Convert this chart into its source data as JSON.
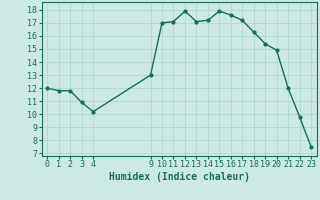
{
  "x": [
    0,
    1,
    2,
    3,
    4,
    9,
    10,
    11,
    12,
    13,
    14,
    15,
    16,
    17,
    18,
    19,
    20,
    21,
    22,
    23
  ],
  "y": [
    12,
    11.8,
    11.8,
    10.9,
    10.2,
    13,
    17,
    17.1,
    17.9,
    17.1,
    17.2,
    17.9,
    17.6,
    17.2,
    16.3,
    15.4,
    14.9,
    12,
    9.8,
    7.5
  ],
  "line_color": "#1a6b5a",
  "bg_color": "#cce9e4",
  "grid_color": "#aad4ce",
  "xlabel": "Humidex (Indice chaleur)",
  "xlabel_fontsize": 7,
  "xticks": [
    0,
    1,
    2,
    3,
    4,
    9,
    10,
    11,
    12,
    13,
    14,
    15,
    16,
    17,
    18,
    19,
    20,
    21,
    22,
    23
  ],
  "yticks": [
    7,
    8,
    9,
    10,
    11,
    12,
    13,
    14,
    15,
    16,
    17,
    18
  ],
  "ylim": [
    6.8,
    18.6
  ],
  "xlim": [
    -0.5,
    23.5
  ],
  "marker": "o",
  "marker_size": 2.0,
  "line_width": 1.0,
  "tick_fontsize": 6.0
}
